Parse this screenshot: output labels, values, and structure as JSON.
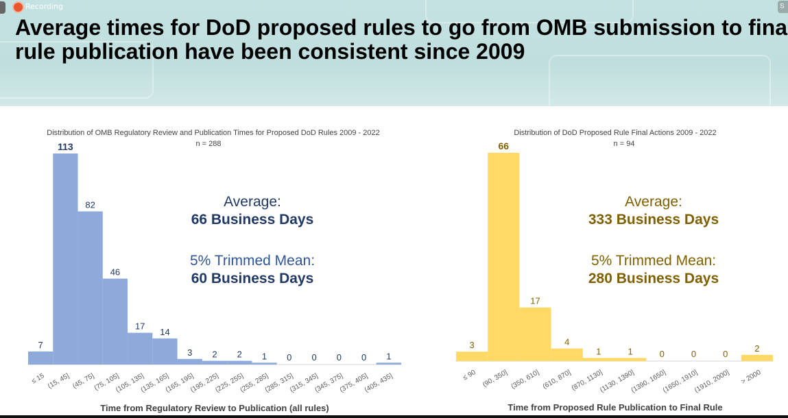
{
  "header": {
    "recording_label": "Recording",
    "right_tab_label": "S",
    "title_line1": "Average times for DoD proposed rules to go from OMB submission to fina",
    "title_line2": "rule publication have been consistent since 2009"
  },
  "colors": {
    "left_bar": "#8eaadb",
    "left_text": "#1f3864",
    "right_bar": "#ffd966",
    "right_text": "#7f6000"
  },
  "left_stats": {
    "avg_label": "Average:",
    "avg_value": "66 Business Days",
    "trim_label": "5% Trimmed Mean:",
    "trim_value": "60 Business Days"
  },
  "right_stats": {
    "avg_label": "Average:",
    "avg_value": "333 Business Days",
    "trim_label": "5% Trimmed Mean:",
    "trim_value": "280 Business Days"
  },
  "chart_data": [
    {
      "type": "bar",
      "title": "Distribution of OMB Regulatory Review and Publication Times for Proposed DoD Rules 2009 - 2022",
      "subtitle": "n = 288",
      "xlabel": "Time from Regulatory Review to Publication (all rules)",
      "ylabel": "",
      "categories": [
        "≤ 15",
        "(15, 45]",
        "(45, 75]",
        "(75, 105]",
        "(105, 135]",
        "(135, 165]",
        "(165, 195]",
        "(195, 225]",
        "(225, 255]",
        "(255, 285]",
        "(285, 315]",
        "(315, 345]",
        "(345, 375]",
        "(375, 405]",
        "(405, 435]"
      ],
      "values": [
        7,
        113,
        82,
        46,
        17,
        14,
        3,
        2,
        2,
        1,
        0,
        0,
        0,
        0,
        1
      ],
      "ylim": [
        0,
        113
      ],
      "grid": false
    },
    {
      "type": "bar",
      "title": "Distribution of DoD Proposed Rule Final Actions 2009 - 2022",
      "subtitle": "n = 94",
      "xlabel": "Time from Proposed Rule Publication to Final Rule",
      "ylabel": "",
      "categories": [
        "≤ 90",
        "(90, 350]",
        "(350, 610]",
        "(610, 870]",
        "(870, 1130]",
        "(1130, 1390]",
        "(1390, 1650]",
        "(1650, 1910]",
        "(1910, 2000]",
        "> 2000"
      ],
      "values": [
        3,
        66,
        17,
        4,
        1,
        1,
        0,
        0,
        0,
        2
      ],
      "ylim": [
        0,
        66
      ],
      "grid": false
    }
  ]
}
